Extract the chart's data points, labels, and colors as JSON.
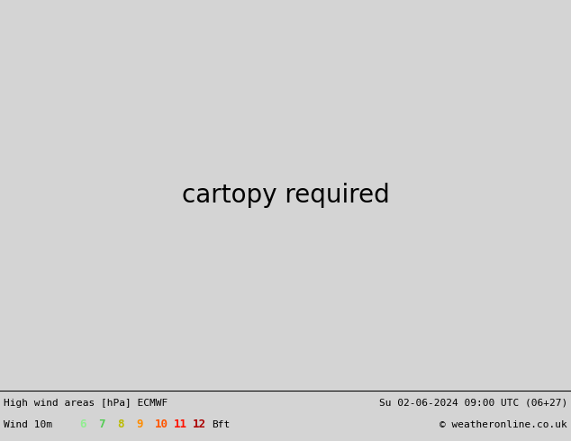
{
  "title_left": "High wind areas [hPa] ECMWF",
  "title_right": "Su 02-06-2024 09:00 UTC (06+27)",
  "subtitle_left": "Wind 10m",
  "copyright": "© weatheronline.co.uk",
  "legend_labels": [
    "6",
    "7",
    "8",
    "9",
    "10",
    "11",
    "12",
    "Bft"
  ],
  "legend_colors": [
    "#90ee90",
    "#55cc55",
    "#cccc00",
    "#ff8c00",
    "#ff5500",
    "#ff1100",
    "#aa0000",
    "#000000"
  ],
  "bg_color": "#d0d0d0",
  "land_color": "#c8c8c8",
  "sea_color": "#d8d8d8",
  "wind_green_light": "#c8f0c8",
  "wind_green_mid": "#90e090",
  "wind_green_strong": "#44cc44",
  "fig_width": 6.34,
  "fig_height": 4.9,
  "dpi": 100,
  "extent": [
    -170,
    -50,
    15,
    80
  ],
  "isobar_blue": "#0000dd",
  "isobar_red": "#dd0000",
  "isobar_black": "#000000"
}
